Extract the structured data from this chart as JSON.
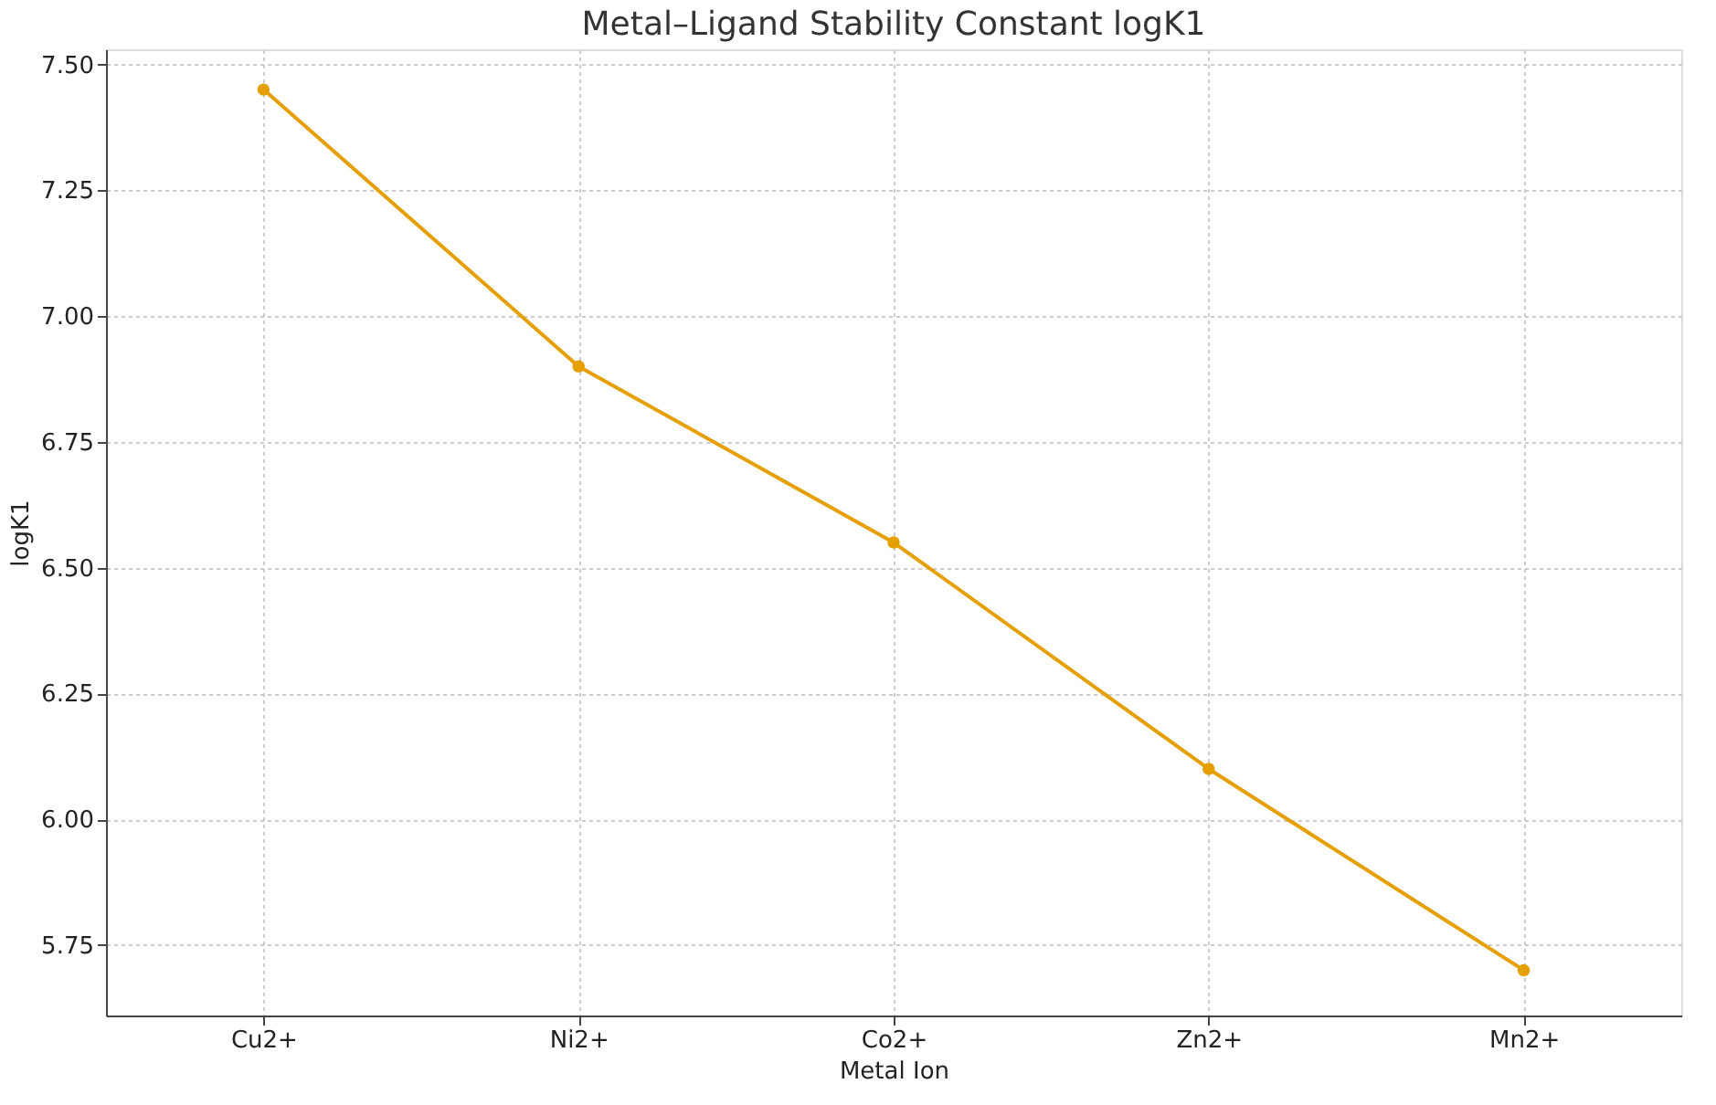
{
  "chart_data": {
    "type": "line",
    "title": "Metal–Ligand Stability Constant logK1",
    "xlabel": "Metal Ion",
    "ylabel": "logK1",
    "categories": [
      "Cu2+",
      "Ni2+",
      "Co2+",
      "Zn2+",
      "Mn2+"
    ],
    "series": [
      {
        "color": "#e69f00",
        "values": [
          7.45,
          6.9,
          6.55,
          6.1,
          5.7
        ]
      }
    ],
    "ylim": [
      5.61,
      7.53
    ],
    "yticks": [
      {
        "value": 5.75,
        "label": "5.75"
      },
      {
        "value": 6.0,
        "label": "6.00"
      },
      {
        "value": 6.25,
        "label": "6.25"
      },
      {
        "value": 6.5,
        "label": "6.50"
      },
      {
        "value": 6.75,
        "label": "6.75"
      },
      {
        "value": 7.0,
        "label": "7.00"
      },
      {
        "value": 7.25,
        "label": "7.25"
      },
      {
        "value": 7.5,
        "label": "7.50"
      }
    ],
    "grid": true,
    "marker": "circle",
    "line_style": "solid"
  }
}
